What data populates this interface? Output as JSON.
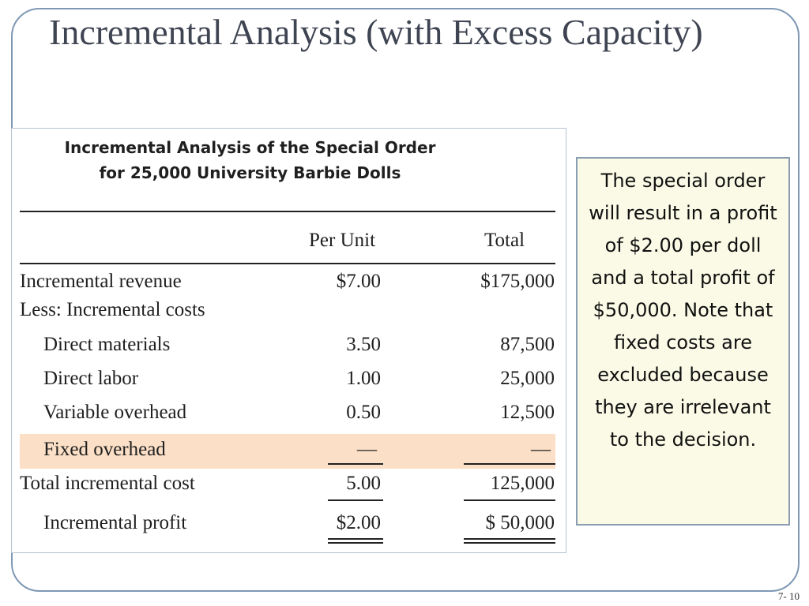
{
  "slide": {
    "title": "Incremental Analysis (with Excess Capacity)",
    "page_number": "7- 10"
  },
  "table": {
    "heading_line1": "Incremental Analysis of the Special Order",
    "heading_line2": "for 25,000 University Barbie Dolls",
    "columns": {
      "per_unit": "Per Unit",
      "total": "Total"
    },
    "rows": [
      {
        "label": "Incremental revenue",
        "per_unit": "$7.00",
        "total": "$175,000"
      },
      {
        "label": "Less: Incremental costs",
        "per_unit": "",
        "total": ""
      },
      {
        "label": "Direct materials",
        "per_unit": "3.50",
        "total": "87,500"
      },
      {
        "label": "Direct labor",
        "per_unit": "1.00",
        "total": "25,000"
      },
      {
        "label": "Variable overhead",
        "per_unit": "0.50",
        "total": "12,500"
      },
      {
        "label": "Fixed overhead",
        "per_unit": "—",
        "total": "—"
      },
      {
        "label": "Total incremental cost",
        "per_unit": "5.00",
        "total": "125,000"
      },
      {
        "label": "Incremental profit",
        "per_unit": "$2.00",
        "total": "$  50,000"
      }
    ]
  },
  "callout": {
    "text": "The special order will result in a profit of $2.00 per doll and a total profit of $50,000.  Note that fixed costs are excluded because they are irrelevant to the decision."
  },
  "colors": {
    "highlight_row": "#fbdfc6",
    "callout_background": "#fafae6",
    "frame_border": "#7f98b4"
  }
}
